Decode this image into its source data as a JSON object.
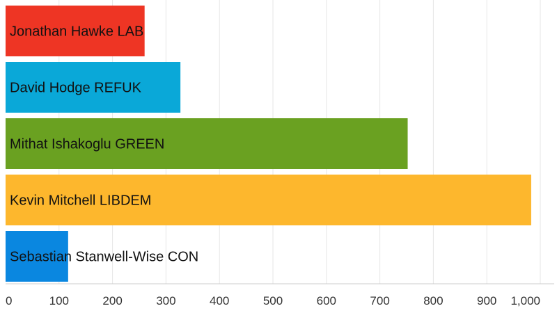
{
  "chart_data": {
    "type": "bar",
    "orientation": "horizontal",
    "categories": [
      "Jonathan Hawke LAB",
      "David Hodge REFUK",
      "Mithat Ishakoglu GREEN",
      "Kevin Mitchell LIBDEM",
      "Sebastian Stanwell-Wise CON"
    ],
    "values": [
      260,
      327,
      752,
      983,
      117
    ],
    "colors": [
      "#ee3524",
      "#0aa8d8",
      "#6aa121",
      "#fdb72d",
      "#0a87e0"
    ],
    "xlim": [
      0,
      1000
    ],
    "xticks": [
      0,
      100,
      200,
      300,
      400,
      500,
      600,
      700,
      800,
      900,
      1000
    ],
    "xtick_labels": [
      "0",
      "100",
      "200",
      "300",
      "400",
      "500",
      "600",
      "700",
      "800",
      "900",
      "1,000"
    ],
    "grid": true,
    "legend": "none"
  }
}
